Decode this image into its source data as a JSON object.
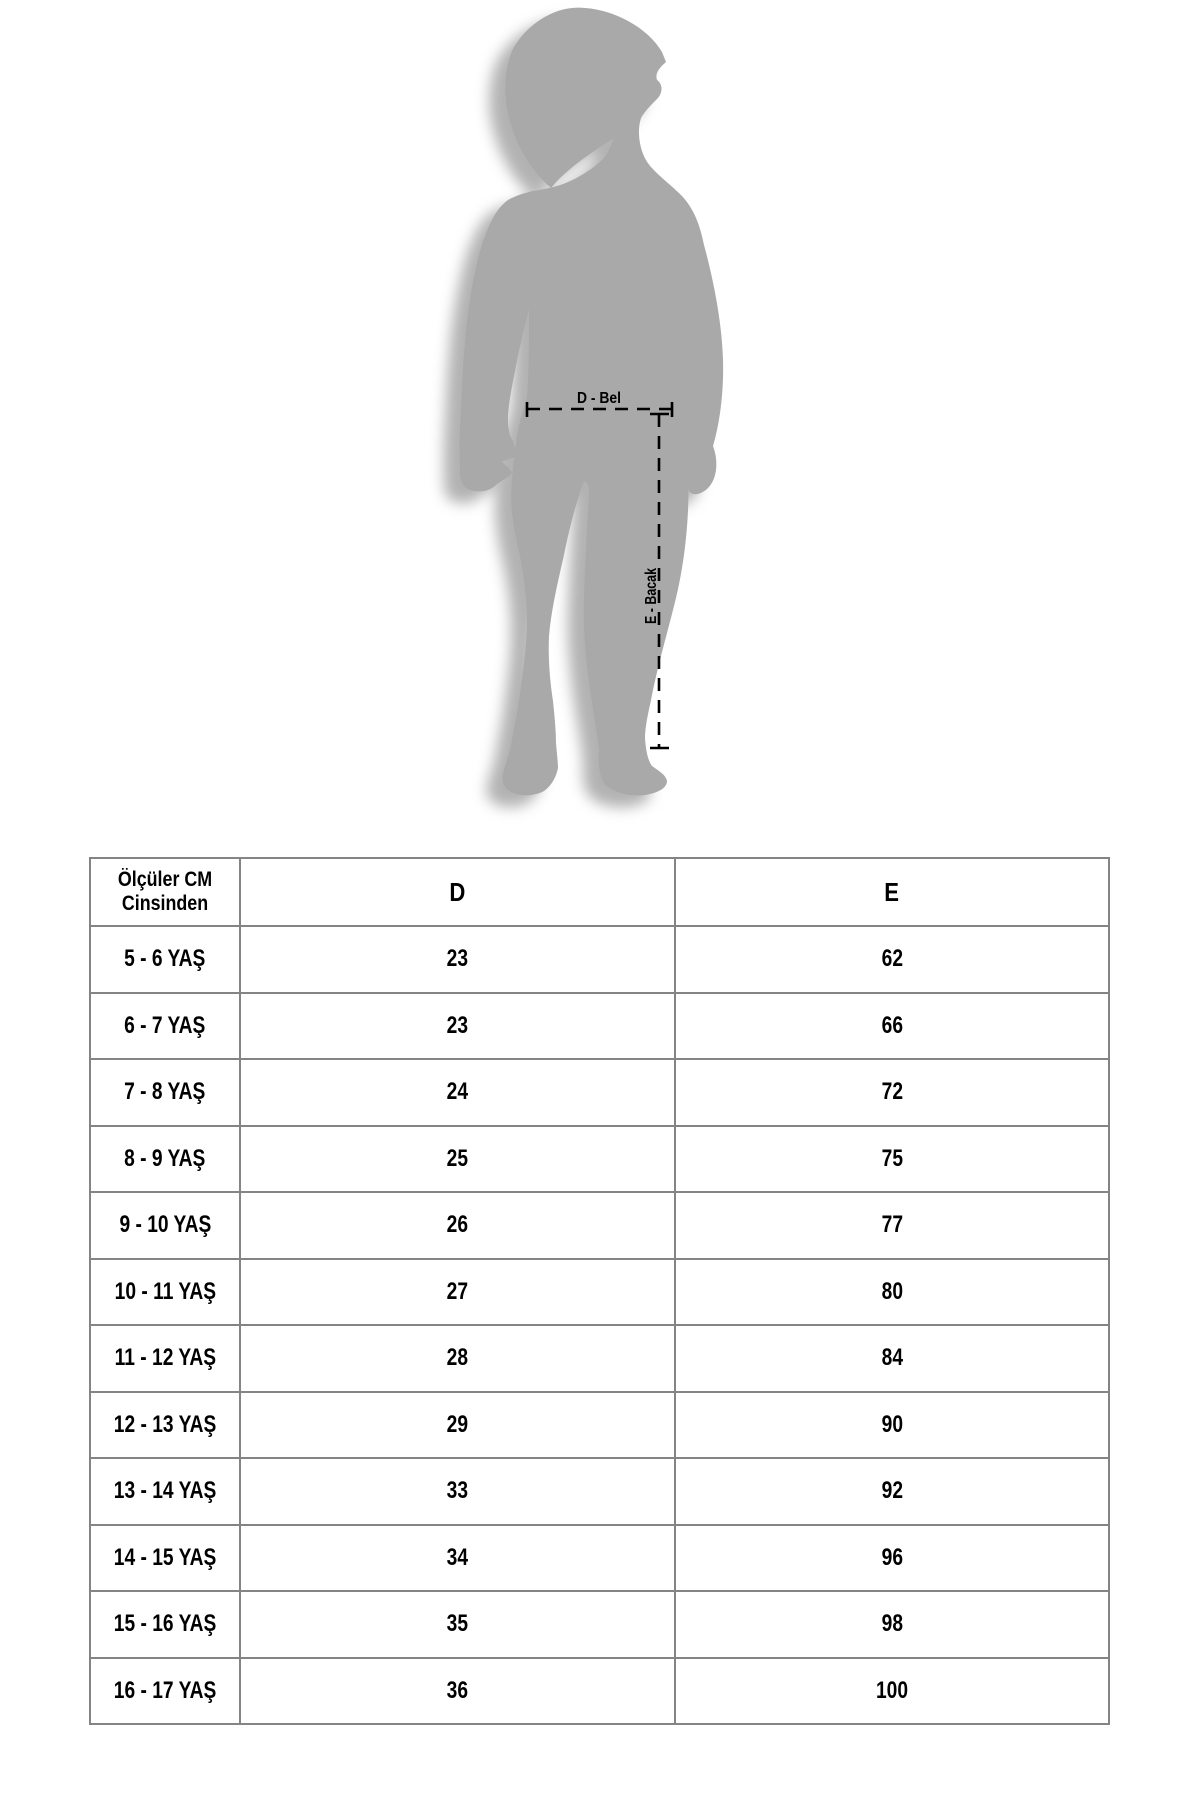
{
  "diagram": {
    "waist_label": "D - Bel",
    "leg_label": "E - Bacak",
    "body_color": "#a9a9a9",
    "line_color": "#000000"
  },
  "table": {
    "border_color": "#848484",
    "header": {
      "col1": "Ölçüler CM Cinsinden",
      "col2": "D",
      "col3": "E"
    },
    "rows": [
      {
        "age": "5 - 6 YAŞ",
        "d": "23",
        "e": "62"
      },
      {
        "age": "6 - 7 YAŞ",
        "d": "23",
        "e": "66"
      },
      {
        "age": "7 - 8 YAŞ",
        "d": "24",
        "e": "72"
      },
      {
        "age": "8 - 9 YAŞ",
        "d": "25",
        "e": "75"
      },
      {
        "age": "9 - 10 YAŞ",
        "d": "26",
        "e": "77"
      },
      {
        "age": "10 - 11 YAŞ",
        "d": "27",
        "e": "80"
      },
      {
        "age": "11 - 12 YAŞ",
        "d": "28",
        "e": "84"
      },
      {
        "age": "12 - 13 YAŞ",
        "d": "29",
        "e": "90"
      },
      {
        "age": "13 - 14 YAŞ",
        "d": "33",
        "e": "92"
      },
      {
        "age": "14 - 15 YAŞ",
        "d": "34",
        "e": "96"
      },
      {
        "age": "15 - 16 YAŞ",
        "d": "35",
        "e": "98"
      },
      {
        "age": "16 - 17 YAŞ",
        "d": "36",
        "e": "100"
      }
    ]
  }
}
